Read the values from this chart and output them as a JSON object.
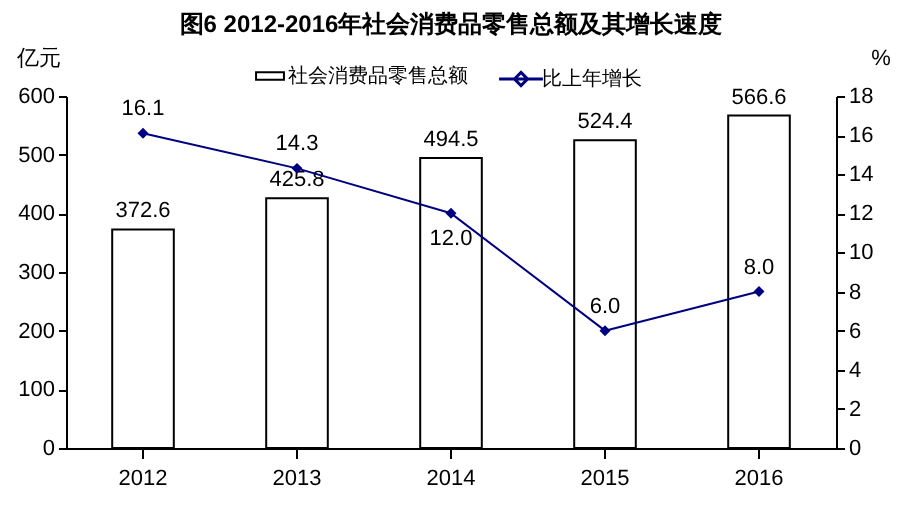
{
  "chart_data": {
    "type": "bar",
    "title": "图6 2012-2016年社会消费品零售总额及其增长速度",
    "categories": [
      "2012",
      "2013",
      "2014",
      "2015",
      "2016"
    ],
    "series": [
      {
        "name": "社会消费品零售总额",
        "color": "#ffffff",
        "values": [
          372.6,
          425.8,
          494.5,
          524.4,
          566.6
        ],
        "value_labels": [
          "372.6",
          "425.8",
          "494.5",
          "524.4",
          "566.6"
        ]
      },
      {
        "name": "比上年增长",
        "type": "line",
        "axis": "y2",
        "color": "#000080",
        "values": [
          16.1,
          14.3,
          12.0,
          6.0,
          8.0
        ],
        "value_labels": [
          "16.1",
          "14.3",
          "12.0",
          "6.0",
          "8.0"
        ]
      }
    ],
    "ylabel": "亿元",
    "y2label": "%",
    "ylim": [
      0,
      600
    ],
    "yticks": [
      0,
      100,
      200,
      300,
      400,
      500,
      600
    ],
    "y2lim": [
      0,
      18
    ],
    "y2ticks": [
      0,
      2,
      4,
      6,
      8,
      10,
      12,
      14,
      16,
      18
    ],
    "marker": "diamond",
    "legend": "top",
    "grid": false
  }
}
